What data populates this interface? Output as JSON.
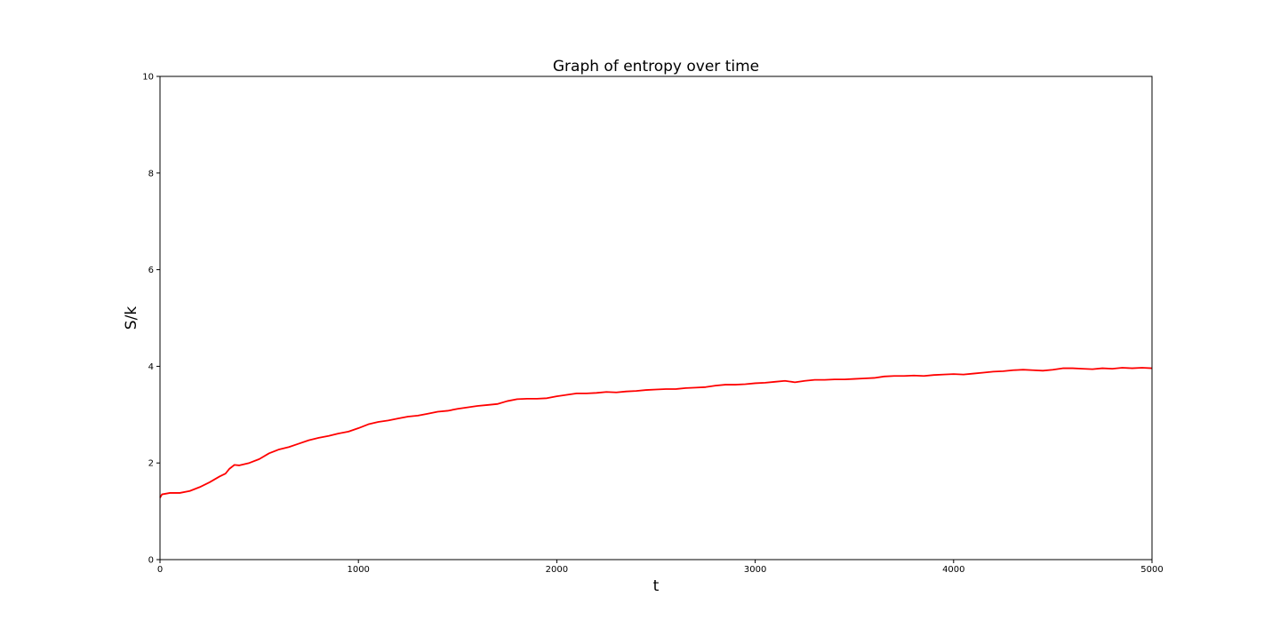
{
  "chart_data": {
    "type": "line",
    "title": "Graph of entropy over time",
    "xlabel": "t",
    "ylabel": "S/k",
    "xlim": [
      0,
      5000
    ],
    "ylim": [
      0,
      10
    ],
    "xticks": [
      0,
      1000,
      2000,
      3000,
      4000,
      5000
    ],
    "yticks": [
      0,
      2,
      4,
      6,
      8,
      10
    ],
    "grid": false,
    "series": [
      {
        "color": "#ff0000",
        "x": [
          0,
          10,
          50,
          100,
          150,
          200,
          250,
          300,
          330,
          350,
          375,
          400,
          450,
          500,
          550,
          600,
          650,
          700,
          750,
          800,
          850,
          900,
          950,
          1000,
          1050,
          1100,
          1150,
          1200,
          1250,
          1300,
          1350,
          1400,
          1450,
          1500,
          1550,
          1600,
          1650,
          1700,
          1750,
          1800,
          1850,
          1900,
          1950,
          2000,
          2050,
          2100,
          2150,
          2200,
          2250,
          2300,
          2350,
          2400,
          2450,
          2500,
          2550,
          2600,
          2650,
          2700,
          2750,
          2800,
          2850,
          2900,
          2950,
          3000,
          3050,
          3100,
          3150,
          3200,
          3250,
          3300,
          3350,
          3400,
          3450,
          3500,
          3550,
          3600,
          3650,
          3700,
          3750,
          3800,
          3850,
          3900,
          3950,
          4000,
          4050,
          4100,
          4150,
          4200,
          4250,
          4300,
          4350,
          4400,
          4450,
          4500,
          4550,
          4600,
          4650,
          4700,
          4750,
          4800,
          4850,
          4900,
          4950,
          5000
        ],
        "y": [
          1.28,
          1.35,
          1.38,
          1.38,
          1.42,
          1.5,
          1.6,
          1.72,
          1.78,
          1.88,
          1.96,
          1.95,
          2.0,
          2.08,
          2.2,
          2.28,
          2.33,
          2.4,
          2.47,
          2.52,
          2.56,
          2.61,
          2.65,
          2.72,
          2.8,
          2.85,
          2.88,
          2.92,
          2.96,
          2.98,
          3.02,
          3.06,
          3.08,
          3.12,
          3.15,
          3.18,
          3.2,
          3.22,
          3.28,
          3.32,
          3.33,
          3.33,
          3.34,
          3.38,
          3.41,
          3.44,
          3.44,
          3.45,
          3.47,
          3.46,
          3.48,
          3.49,
          3.51,
          3.52,
          3.53,
          3.53,
          3.55,
          3.56,
          3.57,
          3.6,
          3.62,
          3.62,
          3.63,
          3.65,
          3.66,
          3.68,
          3.7,
          3.67,
          3.7,
          3.72,
          3.72,
          3.73,
          3.73,
          3.74,
          3.75,
          3.76,
          3.79,
          3.8,
          3.8,
          3.81,
          3.8,
          3.82,
          3.83,
          3.84,
          3.83,
          3.85,
          3.87,
          3.89,
          3.9,
          3.92,
          3.93,
          3.92,
          3.91,
          3.93,
          3.96,
          3.96,
          3.95,
          3.94,
          3.96,
          3.95,
          3.97,
          3.96,
          3.97,
          3.96
        ]
      }
    ]
  }
}
